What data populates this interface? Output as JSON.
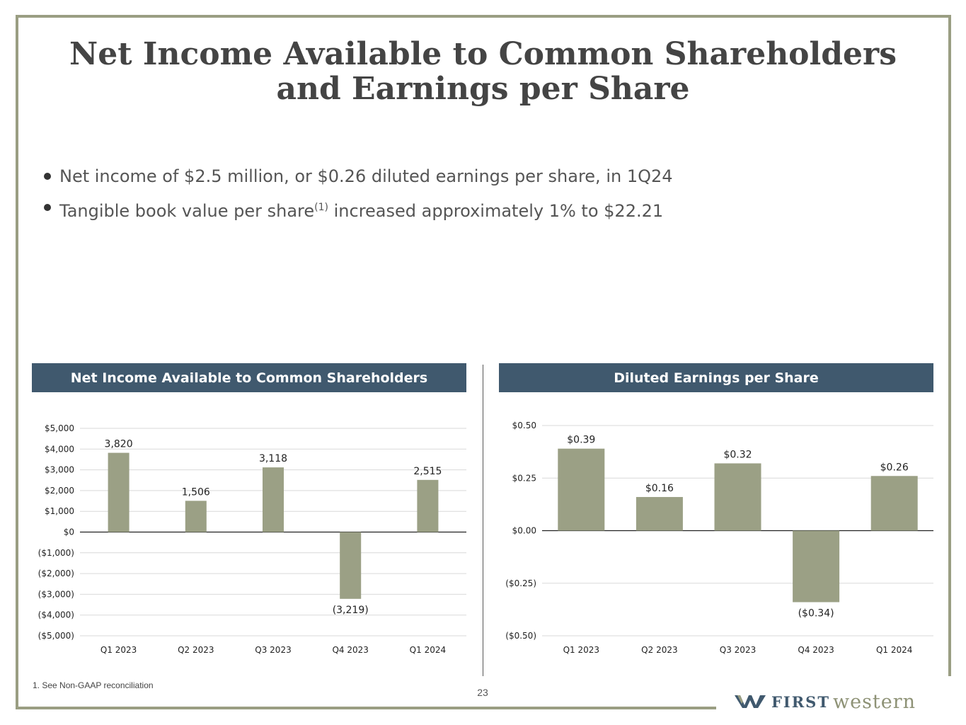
{
  "title": "Net Income Available to Common Shareholders and Earnings per Share",
  "bullets": {
    "b1": "Net income of $2.5 million, or $0.26 diluted earnings per share, in 1Q24",
    "b2_pre": "Tangible book value per share",
    "b2_sup": "(1)",
    "b2_post": " increased approximately 1% to $22.21"
  },
  "colors": {
    "bar": "#9ba085",
    "header": "#40596e",
    "frame": "#9a9e83"
  },
  "chart_data": [
    {
      "type": "bar",
      "title": "Net Income Available to Common Shareholders",
      "categories": [
        "Q1 2023",
        "Q2 2023",
        "Q3 2023",
        "Q4 2023",
        "Q1 2024"
      ],
      "values": [
        3820,
        1506,
        3118,
        -3219,
        2515
      ],
      "data_labels": [
        "3,820",
        "1,506",
        "3,118",
        "(3,219)",
        "2,515"
      ],
      "ylim": [
        -5000,
        5000
      ],
      "yticks": [
        5000,
        4000,
        3000,
        2000,
        1000,
        0,
        -1000,
        -2000,
        -3000,
        -4000,
        -5000
      ],
      "ytick_labels": [
        "$5,000",
        "$4,000",
        "$3,000",
        "$2,000",
        "$1,000",
        "$0",
        "($1,000)",
        "($2,000)",
        "($3,000)",
        "($4,000)",
        "($5,000)"
      ],
      "xlabel": "",
      "ylabel": "",
      "grid": true
    },
    {
      "type": "bar",
      "title": "Diluted Earnings per Share",
      "categories": [
        "Q1 2023",
        "Q2 2023",
        "Q3 2023",
        "Q4 2023",
        "Q1 2024"
      ],
      "values": [
        0.39,
        0.16,
        0.32,
        -0.34,
        0.26
      ],
      "data_labels": [
        "$0.39",
        "$0.16",
        "$0.32",
        "($0.34)",
        "$0.26"
      ],
      "ylim": [
        -0.5,
        0.5
      ],
      "yticks": [
        0.5,
        0.25,
        0,
        -0.25,
        -0.5
      ],
      "ytick_labels": [
        "$0.50",
        "$0.25",
        "$0.00",
        "($0.25)",
        "($0.50)"
      ],
      "xlabel": "",
      "ylabel": "",
      "grid": true
    }
  ],
  "footnote": "1.  See Non-GAAP reconciliation",
  "page_number": "23",
  "logo": {
    "first": "FIRST",
    "western": "western"
  }
}
